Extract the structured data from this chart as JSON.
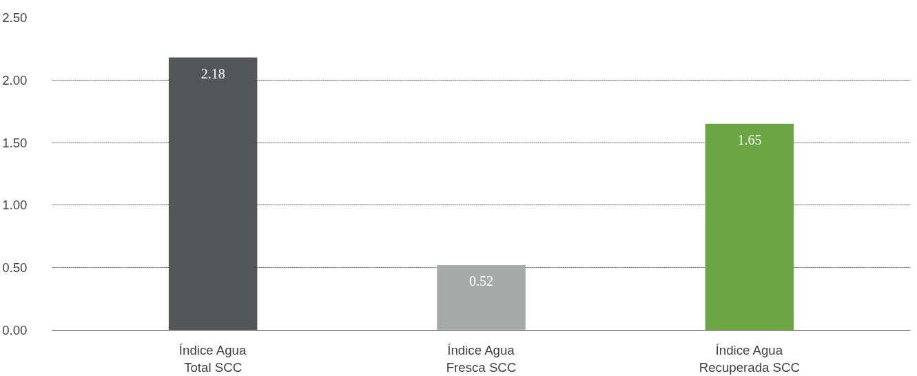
{
  "chart_data": {
    "type": "bar",
    "categories": [
      "Índice Agua\nTotal SCC",
      "Índice Agua\nFresca SCC",
      "Índice Agua\nRecuperada SCC"
    ],
    "values": [
      2.18,
      0.52,
      1.65
    ],
    "colors": [
      "#55565a",
      "#a8aaa9",
      "#6aa443"
    ],
    "ylim": [
      0,
      2.5
    ],
    "yticks": [
      {
        "value": 0,
        "label": "0.00"
      },
      {
        "value": 0.5,
        "label": "0.50"
      },
      {
        "value": 1,
        "label": "1.00"
      },
      {
        "value": 1.5,
        "label": "1.50"
      },
      {
        "value": 2,
        "label": "2.00"
      },
      {
        "value": 2.5,
        "label": "2.50"
      }
    ],
    "grid": "y",
    "data_labels": true
  }
}
